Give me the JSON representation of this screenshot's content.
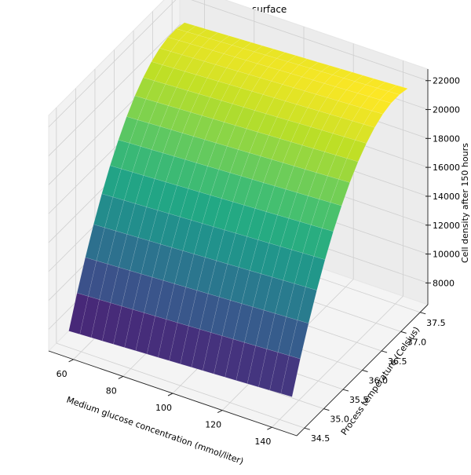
{
  "chart_data": {
    "type": "surface3d",
    "title": "DoE response surface",
    "xlabel": "Medium glucose concentration (mmol/liter)",
    "ylabel": "Process temperature (Celsius)",
    "zlabel": "Cell density after 150 hours",
    "colormap": "viridis",
    "x_ticks": [
      60,
      80,
      100,
      120,
      140
    ],
    "y_ticks": [
      "34.5",
      "35.0",
      "35.5",
      "36.0",
      "36.5",
      "37.0",
      "37.5"
    ],
    "z_ticks": [
      8000,
      10000,
      12000,
      14000,
      16000,
      18000,
      20000,
      22000
    ],
    "xlim": [
      50,
      150
    ],
    "ylim": [
      34.3,
      37.7
    ],
    "zlim": [
      6500,
      22800
    ],
    "surface": {
      "x_range": [
        55,
        145
      ],
      "y_range": [
        34.5,
        37.5
      ],
      "x_steps": 20,
      "y_steps": 14,
      "model": "z = 21500 - 13500*(t-37.2)^2/(2.7^2) + 8*(g-100); quadratic in temperature peaking near 37.2 C, slight increase with glucose",
      "z_min_approx": 7000,
      "z_max_approx": 21800,
      "peak_temperature_approx": 37.2
    },
    "grid": true
  }
}
